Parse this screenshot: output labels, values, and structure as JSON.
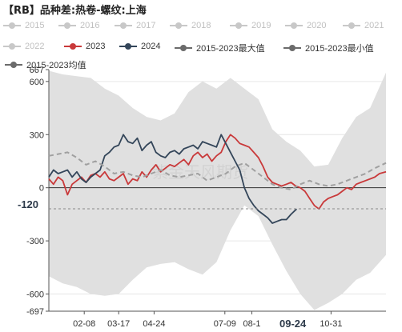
{
  "header": {
    "title": "【RB】品种差:热卷-螺纹:上海"
  },
  "colors": {
    "2023": "#c9393a",
    "2024": "#334559",
    "max": "#6b6b6b",
    "min": "#6b6b6b",
    "mean": "#a0a0a0",
    "band": "#e0e0e0",
    "inactive": "#c8c8c8",
    "inactive_text": "#c0c0c0",
    "active_text": "#333333",
    "axis": "#555555",
    "grid": "#e6e6e6"
  },
  "legend": [
    {
      "label": "2015",
      "active": false,
      "icon": "circle-marker-icon"
    },
    {
      "label": "2016",
      "active": false,
      "icon": "circle-marker-icon"
    },
    {
      "label": "2017",
      "active": false,
      "icon": "circle-marker-icon"
    },
    {
      "label": "2018",
      "active": false,
      "icon": "circle-marker-icon"
    },
    {
      "label": "2019",
      "active": false,
      "icon": "circle-marker-icon"
    },
    {
      "label": "2020",
      "active": false,
      "icon": "circle-marker-icon"
    },
    {
      "label": "2021",
      "active": false,
      "icon": "circle-marker-icon"
    },
    {
      "label": "2022",
      "active": false,
      "icon": "circle-marker-icon"
    },
    {
      "label": "2023",
      "active": true,
      "icon": "circle-marker-icon"
    },
    {
      "label": "2024",
      "active": true,
      "icon": "circle-marker-icon"
    },
    {
      "label": "2015-2023最大值",
      "active": true,
      "icon": "circle-marker-icon"
    },
    {
      "label": "2015-2023最小值",
      "active": true,
      "icon": "circle-marker-icon"
    },
    {
      "label": "2015-2023均值",
      "active": true,
      "icon": "circle-marker-icon"
    }
  ],
  "watermark": "紫金天风期货",
  "cursor": {
    "y_label": "-120",
    "x_label": "09-24"
  },
  "chart_data": {
    "type": "line",
    "ylim": [
      -697,
      667
    ],
    "yticks": [
      {
        "label": "667",
        "value": 667
      },
      {
        "label": "600",
        "value": 600
      },
      {
        "label": "300",
        "value": 300
      },
      {
        "label": "0",
        "value": 0
      },
      {
        "label": "-300",
        "value": -300
      },
      {
        "label": "-600",
        "value": -600
      },
      {
        "label": "-697",
        "value": -697
      }
    ],
    "xticks": [
      {
        "label": "02-08",
        "day": 38
      },
      {
        "label": "03-17",
        "day": 75
      },
      {
        "label": "04-24",
        "day": 113
      },
      {
        "label": "07-09",
        "day": 189
      },
      {
        "label": "08-1",
        "day": 218
      },
      {
        "label": "10-31",
        "day": 303
      }
    ],
    "series": [
      {
        "name": "2023",
        "style": "solid",
        "x": [
          0,
          5,
          10,
          15,
          20,
          25,
          30,
          35,
          40,
          45,
          50,
          55,
          60,
          65,
          70,
          75,
          80,
          85,
          90,
          95,
          100,
          105,
          110,
          115,
          120,
          125,
          130,
          135,
          140,
          145,
          150,
          155,
          160,
          165,
          170,
          175,
          180,
          185,
          190,
          195,
          200,
          205,
          210,
          215,
          220,
          225,
          230,
          235,
          240,
          245,
          250,
          255,
          260,
          265,
          270,
          275,
          280,
          285,
          290,
          295,
          300,
          305,
          310,
          315,
          320,
          325,
          330,
          335,
          340,
          345,
          350,
          355,
          362
        ],
        "values": [
          50,
          20,
          60,
          40,
          -40,
          20,
          40,
          60,
          30,
          70,
          80,
          60,
          90,
          50,
          40,
          60,
          80,
          20,
          50,
          40,
          90,
          60,
          100,
          130,
          90,
          110,
          130,
          120,
          140,
          160,
          130,
          180,
          200,
          170,
          190,
          150,
          180,
          200,
          260,
          300,
          280,
          250,
          240,
          230,
          200,
          170,
          120,
          60,
          30,
          20,
          10,
          20,
          30,
          10,
          0,
          -20,
          -60,
          -100,
          -120,
          -80,
          -60,
          -50,
          -40,
          -20,
          0,
          -10,
          20,
          30,
          40,
          50,
          60,
          80,
          90
        ]
      },
      {
        "name": "2024",
        "style": "solid",
        "x": [
          0,
          5,
          10,
          15,
          20,
          25,
          30,
          35,
          40,
          45,
          50,
          55,
          60,
          65,
          70,
          75,
          80,
          85,
          90,
          95,
          100,
          105,
          110,
          115,
          120,
          125,
          130,
          135,
          140,
          145,
          150,
          155,
          160,
          165,
          170,
          175,
          180,
          185,
          190,
          195,
          200,
          205,
          210,
          215,
          220,
          225,
          230,
          235,
          240,
          245,
          250,
          255,
          260,
          266
        ],
        "values": [
          60,
          100,
          80,
          90,
          100,
          60,
          90,
          50,
          30,
          60,
          80,
          100,
          180,
          200,
          230,
          240,
          300,
          260,
          250,
          280,
          210,
          240,
          260,
          200,
          180,
          170,
          200,
          210,
          190,
          220,
          230,
          240,
          220,
          260,
          250,
          240,
          230,
          300,
          250,
          200,
          150,
          100,
          0,
          -60,
          -100,
          -130,
          -150,
          -170,
          -200,
          -190,
          -180,
          -180,
          -150,
          -120
        ]
      },
      {
        "name": "2015-2023均值",
        "style": "dashed",
        "x": [
          0,
          10,
          20,
          30,
          40,
          50,
          60,
          70,
          80,
          90,
          100,
          110,
          120,
          130,
          140,
          150,
          160,
          170,
          180,
          190,
          200,
          210,
          220,
          230,
          240,
          250,
          260,
          270,
          280,
          290,
          300,
          310,
          320,
          330,
          340,
          350,
          362
        ],
        "values": [
          180,
          190,
          200,
          170,
          130,
          150,
          120,
          80,
          90,
          70,
          60,
          80,
          100,
          70,
          60,
          70,
          80,
          40,
          60,
          80,
          120,
          140,
          100,
          60,
          20,
          0,
          -10,
          20,
          40,
          20,
          10,
          20,
          40,
          60,
          80,
          110,
          140
        ]
      },
      {
        "name": "2015-2023最大值",
        "style": "band-upper",
        "x": [
          0,
          15,
          30,
          45,
          60,
          75,
          90,
          105,
          120,
          135,
          150,
          165,
          180,
          195,
          210,
          225,
          240,
          255,
          270,
          285,
          300,
          315,
          330,
          345,
          362
        ],
        "values": [
          660,
          640,
          630,
          620,
          560,
          520,
          450,
          400,
          380,
          420,
          540,
          600,
          560,
          620,
          560,
          500,
          330,
          260,
          210,
          120,
          130,
          280,
          400,
          450,
          650
        ]
      },
      {
        "name": "2015-2023最小值",
        "style": "band-lower",
        "x": [
          0,
          15,
          30,
          45,
          60,
          75,
          90,
          105,
          120,
          135,
          150,
          165,
          180,
          195,
          210,
          225,
          240,
          255,
          270,
          285,
          300,
          315,
          330,
          345,
          362
        ],
        "values": [
          -500,
          -540,
          -560,
          -600,
          -610,
          -600,
          -520,
          -450,
          -430,
          -420,
          -460,
          -490,
          -420,
          -240,
          -100,
          -160,
          -320,
          -470,
          -600,
          -690,
          -650,
          -600,
          -520,
          -480,
          -380
        ]
      }
    ]
  }
}
